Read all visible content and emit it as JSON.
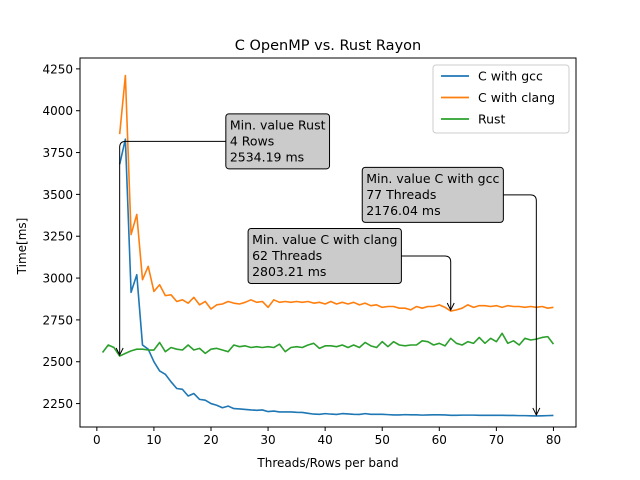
{
  "chart_data": {
    "type": "line",
    "title": "C OpenMP vs. Rust Rayon",
    "xlabel": "Threads/Rows per band",
    "ylabel": "Time[ms]",
    "xlim": [
      -2.95,
      83.95
    ],
    "ylim": [
      2110,
      4315
    ],
    "xticks": [
      0,
      10,
      20,
      30,
      40,
      50,
      60,
      70,
      80
    ],
    "yticks": [
      2250,
      2500,
      2750,
      3000,
      3250,
      3500,
      3750,
      4000,
      4250
    ],
    "legend": "top-right",
    "grid": false,
    "series": [
      {
        "name": "C with gcc",
        "color": "#1f77b4",
        "x": [
          4,
          5,
          6,
          7,
          8,
          9,
          10,
          11,
          12,
          13,
          14,
          15,
          16,
          17,
          18,
          19,
          20,
          21,
          22,
          23,
          24,
          25,
          26,
          27,
          28,
          29,
          30,
          31,
          32,
          33,
          34,
          35,
          36,
          37,
          38,
          39,
          40,
          41,
          42,
          43,
          44,
          45,
          46,
          47,
          48,
          49,
          50,
          51,
          52,
          53,
          54,
          55,
          56,
          57,
          58,
          59,
          60,
          61,
          62,
          63,
          64,
          65,
          66,
          67,
          68,
          69,
          70,
          71,
          72,
          73,
          74,
          75,
          76,
          77,
          78,
          79,
          80
        ],
        "values": [
          3680,
          3830,
          2915,
          3020,
          2600,
          2575,
          2500,
          2445,
          2425,
          2380,
          2340,
          2335,
          2295,
          2310,
          2275,
          2270,
          2250,
          2240,
          2225,
          2235,
          2220,
          2218,
          2215,
          2212,
          2210,
          2212,
          2202,
          2205,
          2200,
          2200,
          2200,
          2198,
          2197,
          2192,
          2187,
          2186,
          2190,
          2187,
          2185,
          2190,
          2188,
          2186,
          2185,
          2190,
          2186,
          2186,
          2186,
          2184,
          2182,
          2182,
          2184,
          2183,
          2183,
          2181,
          2182,
          2183,
          2183,
          2182,
          2180,
          2180,
          2181,
          2181,
          2181,
          2180,
          2180,
          2180,
          2180,
          2180,
          2179,
          2179,
          2178,
          2178,
          2177,
          2176,
          2177,
          2178,
          2179
        ]
      },
      {
        "name": "C with clang",
        "color": "#ff7f0e",
        "x": [
          4,
          5,
          6,
          7,
          8,
          9,
          10,
          11,
          12,
          13,
          14,
          15,
          16,
          17,
          18,
          19,
          20,
          21,
          22,
          23,
          24,
          25,
          26,
          27,
          28,
          29,
          30,
          31,
          32,
          33,
          34,
          35,
          36,
          37,
          38,
          39,
          40,
          41,
          42,
          43,
          44,
          45,
          46,
          47,
          48,
          49,
          50,
          51,
          52,
          53,
          54,
          55,
          56,
          57,
          58,
          59,
          60,
          61,
          62,
          63,
          64,
          65,
          66,
          67,
          68,
          69,
          70,
          71,
          72,
          73,
          74,
          75,
          76,
          77,
          78,
          79,
          80
        ],
        "values": [
          3860,
          4210,
          3260,
          3380,
          2990,
          3070,
          2920,
          2960,
          2895,
          2900,
          2860,
          2870,
          2850,
          2885,
          2840,
          2860,
          2815,
          2840,
          2845,
          2860,
          2850,
          2845,
          2855,
          2870,
          2855,
          2860,
          2825,
          2870,
          2855,
          2860,
          2855,
          2860,
          2855,
          2860,
          2850,
          2855,
          2845,
          2860,
          2845,
          2855,
          2845,
          2855,
          2840,
          2850,
          2835,
          2840,
          2825,
          2830,
          2830,
          2820,
          2820,
          2810,
          2830,
          2820,
          2830,
          2830,
          2840,
          2825,
          2803,
          2810,
          2820,
          2840,
          2825,
          2835,
          2835,
          2830,
          2835,
          2825,
          2835,
          2830,
          2830,
          2825,
          2830,
          2825,
          2830,
          2820,
          2825
        ]
      },
      {
        "name": "Rust",
        "color": "#2ca02c",
        "x": [
          1,
          2,
          3,
          4,
          5,
          6,
          7,
          8,
          9,
          10,
          11,
          12,
          13,
          14,
          15,
          16,
          17,
          18,
          19,
          20,
          21,
          22,
          23,
          24,
          25,
          26,
          27,
          28,
          29,
          30,
          31,
          32,
          33,
          34,
          35,
          36,
          37,
          38,
          39,
          40,
          41,
          42,
          43,
          44,
          45,
          46,
          47,
          48,
          49,
          50,
          51,
          52,
          53,
          54,
          55,
          56,
          57,
          58,
          59,
          60,
          61,
          62,
          63,
          64,
          65,
          66,
          67,
          68,
          69,
          70,
          71,
          72,
          73,
          74,
          75,
          76,
          77,
          78,
          79,
          80
        ],
        "values": [
          2555,
          2600,
          2585,
          2534,
          2550,
          2565,
          2575,
          2575,
          2570,
          2570,
          2615,
          2560,
          2585,
          2575,
          2570,
          2600,
          2570,
          2580,
          2550,
          2575,
          2580,
          2570,
          2560,
          2600,
          2590,
          2595,
          2585,
          2590,
          2585,
          2590,
          2585,
          2605,
          2560,
          2585,
          2590,
          2585,
          2600,
          2610,
          2580,
          2595,
          2595,
          2590,
          2600,
          2585,
          2600,
          2585,
          2615,
          2595,
          2585,
          2620,
          2590,
          2620,
          2600,
          2595,
          2600,
          2600,
          2625,
          2620,
          2600,
          2610,
          2595,
          2640,
          2610,
          2600,
          2620,
          2610,
          2645,
          2610,
          2640,
          2620,
          2670,
          2610,
          2625,
          2600,
          2640,
          2630,
          2635,
          2645,
          2650,
          2605
        ]
      }
    ],
    "annotations": [
      {
        "lines": [
          "Min. value Rust",
          "4 Rows",
          "2534.19 ms"
        ],
        "point": [
          4,
          2534.19
        ],
        "text_at": [
          23.3,
          3820
        ],
        "arrow": "left-down"
      },
      {
        "lines": [
          "Min. value C with gcc",
          "77 Threads",
          "2176.04 ms"
        ],
        "point": [
          77,
          2176.04
        ],
        "text_at": [
          47.2,
          3500
        ],
        "arrow": "right-down"
      },
      {
        "lines": [
          "Min. value C with clang",
          "62 Threads",
          "2803.21 ms"
        ],
        "point": [
          62,
          2803.21
        ],
        "text_at": [
          27.2,
          3135
        ],
        "arrow": "right-down"
      }
    ]
  }
}
